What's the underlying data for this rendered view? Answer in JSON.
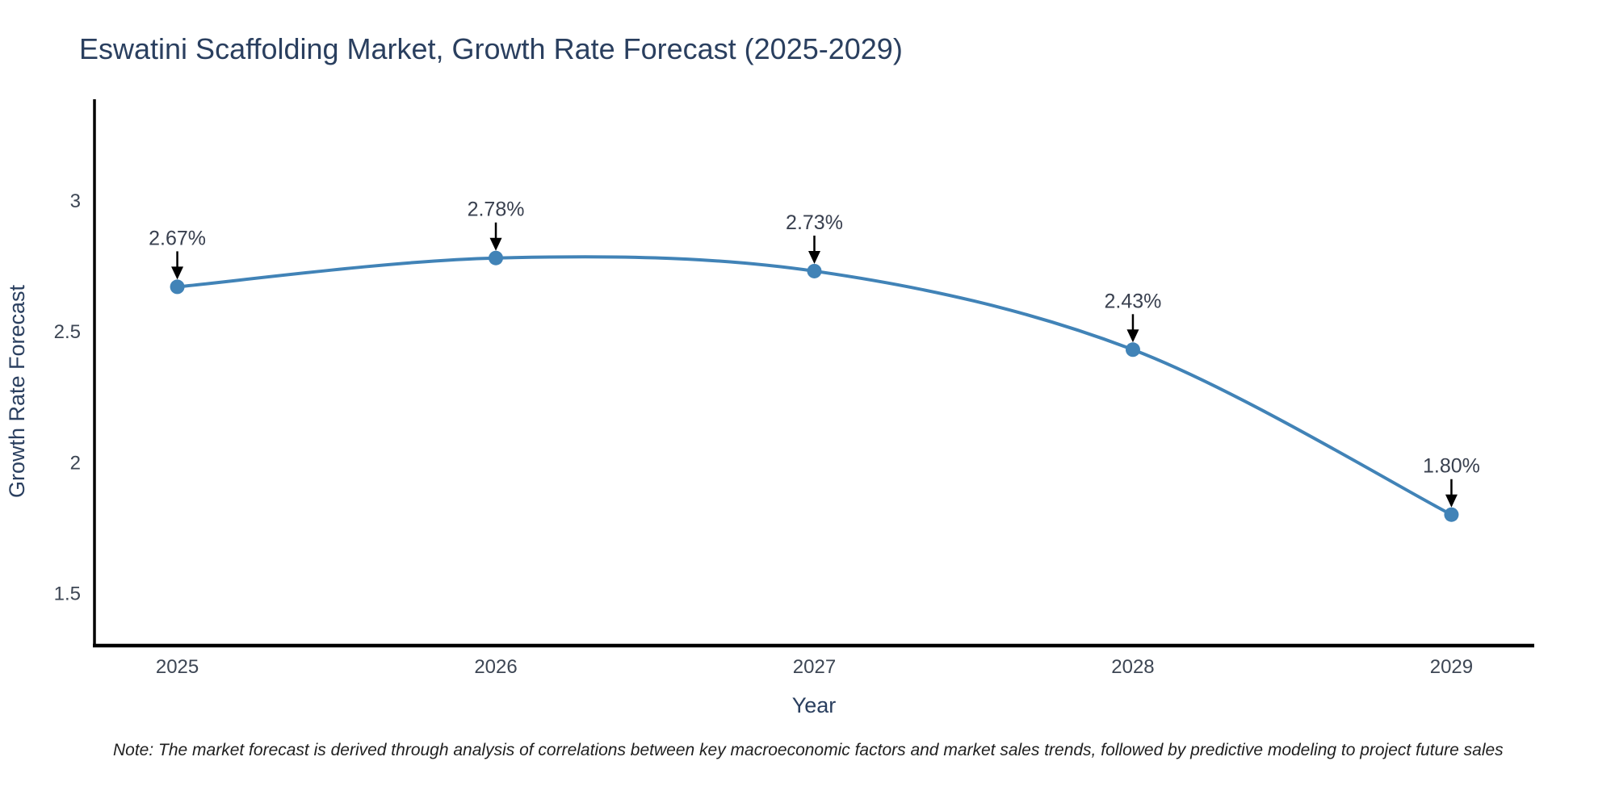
{
  "title": "Eswatini Scaffolding Market, Growth Rate Forecast (2025-2029)",
  "note": "Note: The market forecast is derived through analysis of correlations between key macroeconomic factors and market sales trends, followed by predictive modeling to project future sales",
  "chart_data": {
    "type": "line",
    "title": "Eswatini Scaffolding Market, Growth Rate Forecast (2025-2029)",
    "xlabel": "Year",
    "ylabel": "Growth Rate Forecast",
    "x": [
      2025,
      2026,
      2027,
      2028,
      2029
    ],
    "values": [
      2.67,
      2.78,
      2.73,
      2.43,
      1.8
    ],
    "point_labels": [
      "2.67%",
      "2.78%",
      "2.73%",
      "2.43%",
      "1.80%"
    ],
    "x_tick_labels": [
      "2025",
      "2026",
      "2027",
      "2028",
      "2029"
    ],
    "y_ticks": [
      1.5,
      2,
      2.5,
      3
    ],
    "y_tick_labels": [
      "1.5",
      "2",
      "2.5",
      "3"
    ],
    "xlim": [
      2024.74,
      2029.26
    ],
    "ylim": [
      1.3,
      3.38
    ],
    "grid": false,
    "legend": "none",
    "colors": {
      "line": "#4183b7",
      "marker": "#4183b7",
      "annotation_arrow": "#000000",
      "axis_line": "#000000",
      "title_text": "#2a3f5f",
      "axis_title_text": "#2a3f5f",
      "tick_text": "#3d4654",
      "point_label_text": "#39404f",
      "note_text": "#1f1f1f"
    }
  }
}
